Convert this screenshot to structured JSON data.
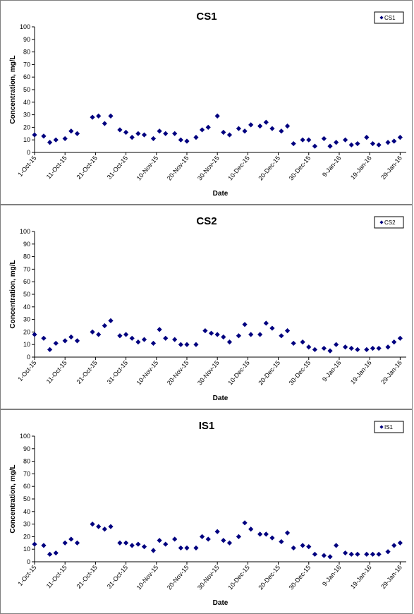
{
  "chart_data": [
    {
      "type": "scatter",
      "title": "CS1",
      "xlabel": "Date",
      "ylabel": "Concentration, mg/L",
      "ylim": [
        0,
        100
      ],
      "yticks": [
        0,
        10,
        20,
        30,
        40,
        50,
        60,
        70,
        80,
        90,
        100
      ],
      "xlim": [
        "2015-10-01",
        "2016-01-31"
      ],
      "xtick_labels": [
        "1-Oct-15",
        "11-Oct-15",
        "21-Oct-15",
        "31-Oct-15",
        "10-Nov-15",
        "20-Nov-15",
        "30-Nov-15",
        "10-Dec-15",
        "20-Dec-15",
        "30-Dec-15",
        "9-Jan-16",
        "19-Jan-16",
        "29-Jan-16"
      ],
      "grid": false,
      "legend_position": "top-right",
      "marker_color": "#00007f",
      "series": [
        {
          "name": "CS1",
          "x": [
            "2015-10-01",
            "2015-10-04",
            "2015-10-06",
            "2015-10-08",
            "2015-10-11",
            "2015-10-13",
            "2015-10-15",
            "2015-10-20",
            "2015-10-22",
            "2015-10-24",
            "2015-10-26",
            "2015-10-29",
            "2015-10-31",
            "2015-11-02",
            "2015-11-04",
            "2015-11-06",
            "2015-11-09",
            "2015-11-11",
            "2015-11-13",
            "2015-11-16",
            "2015-11-18",
            "2015-11-20",
            "2015-11-23",
            "2015-11-25",
            "2015-11-27",
            "2015-11-30",
            "2015-12-02",
            "2015-12-04",
            "2015-12-07",
            "2015-12-09",
            "2015-12-11",
            "2015-12-14",
            "2015-12-16",
            "2015-12-18",
            "2015-12-21",
            "2015-12-23",
            "2015-12-25",
            "2015-12-28",
            "2015-12-30",
            "2016-01-01",
            "2016-01-04",
            "2016-01-06",
            "2016-01-08",
            "2016-01-11",
            "2016-01-13",
            "2016-01-15",
            "2016-01-18",
            "2016-01-20",
            "2016-01-22",
            "2016-01-25",
            "2016-01-27",
            "2016-01-29"
          ],
          "y": [
            14,
            13,
            8,
            10,
            11,
            17,
            15,
            28,
            29,
            23,
            29,
            18,
            16,
            12,
            15,
            14,
            11,
            17,
            15,
            15,
            10,
            9,
            12,
            18,
            20,
            29,
            16,
            14,
            19,
            17,
            22,
            21,
            24,
            19,
            17,
            21,
            7,
            10,
            10,
            5,
            11,
            5,
            8,
            10,
            6,
            7,
            12,
            7,
            6,
            8,
            9,
            12
          ]
        }
      ]
    },
    {
      "type": "scatter",
      "title": "CS2",
      "xlabel": "Date",
      "ylabel": "Concentration, mg/L",
      "ylim": [
        0,
        100
      ],
      "yticks": [
        0,
        10,
        20,
        30,
        40,
        50,
        60,
        70,
        80,
        90,
        100
      ],
      "xlim": [
        "2015-10-01",
        "2016-01-31"
      ],
      "xtick_labels": [
        "1-Oct-15",
        "11-Oct-15",
        "21-Oct-15",
        "31-Oct-15",
        "10-Nov-15",
        "20-Nov-15",
        "30-Nov-15",
        "10-Dec-15",
        "20-Dec-15",
        "30-Dec-15",
        "9-Jan-16",
        "19-Jan-16",
        "29-Jan-16"
      ],
      "grid": false,
      "legend_position": "top-right",
      "marker_color": "#00007f",
      "series": [
        {
          "name": "CS2",
          "x": [
            "2015-10-01",
            "2015-10-04",
            "2015-10-06",
            "2015-10-08",
            "2015-10-11",
            "2015-10-13",
            "2015-10-15",
            "2015-10-20",
            "2015-10-22",
            "2015-10-24",
            "2015-10-26",
            "2015-10-29",
            "2015-10-31",
            "2015-11-02",
            "2015-11-04",
            "2015-11-06",
            "2015-11-09",
            "2015-11-11",
            "2015-11-13",
            "2015-11-16",
            "2015-11-18",
            "2015-11-20",
            "2015-11-23",
            "2015-11-26",
            "2015-11-28",
            "2015-11-30",
            "2015-12-02",
            "2015-12-04",
            "2015-12-07",
            "2015-12-09",
            "2015-12-11",
            "2015-12-14",
            "2015-12-16",
            "2015-12-18",
            "2015-12-21",
            "2015-12-23",
            "2015-12-25",
            "2015-12-28",
            "2015-12-30",
            "2016-01-01",
            "2016-01-04",
            "2016-01-06",
            "2016-01-08",
            "2016-01-11",
            "2016-01-13",
            "2016-01-15",
            "2016-01-18",
            "2016-01-20",
            "2016-01-22",
            "2016-01-25",
            "2016-01-27",
            "2016-01-29"
          ],
          "y": [
            18,
            15,
            6,
            11,
            13,
            16,
            13,
            20,
            18,
            25,
            29,
            17,
            18,
            15,
            12,
            14,
            11,
            22,
            15,
            14,
            10,
            10,
            10,
            21,
            19,
            18,
            16,
            12,
            17,
            26,
            18,
            18,
            27,
            23,
            17,
            21,
            11,
            12,
            8,
            6,
            7,
            5,
            10,
            8,
            7,
            6,
            6,
            7,
            7,
            8,
            12,
            15
          ]
        }
      ]
    },
    {
      "type": "scatter",
      "title": "IS1",
      "xlabel": "Date",
      "ylabel": "Concentration, mg/L",
      "ylim": [
        0,
        100
      ],
      "yticks": [
        0,
        10,
        20,
        30,
        40,
        50,
        60,
        70,
        80,
        90,
        100
      ],
      "xlim": [
        "2015-10-01",
        "2016-01-31"
      ],
      "xtick_labels": [
        "1-Oct-15",
        "11-Oct-15",
        "21-Oct-15",
        "31-Oct-15",
        "10-Nov-15",
        "20-Nov-15",
        "30-Nov-15",
        "10-Dec-15",
        "20-Dec-15",
        "30-Dec-15",
        "9-Jan-16",
        "19-Jan-16",
        "29-Jan-16"
      ],
      "grid": false,
      "legend_position": "top-right",
      "marker_color": "#00007f",
      "series": [
        {
          "name": "IS1",
          "x": [
            "2015-10-01",
            "2015-10-04",
            "2015-10-06",
            "2015-10-08",
            "2015-10-11",
            "2015-10-13",
            "2015-10-15",
            "2015-10-20",
            "2015-10-22",
            "2015-10-24",
            "2015-10-26",
            "2015-10-29",
            "2015-10-31",
            "2015-11-02",
            "2015-11-04",
            "2015-11-06",
            "2015-11-09",
            "2015-11-11",
            "2015-11-13",
            "2015-11-16",
            "2015-11-18",
            "2015-11-20",
            "2015-11-23",
            "2015-11-25",
            "2015-11-27",
            "2015-11-30",
            "2015-12-02",
            "2015-12-04",
            "2015-12-07",
            "2015-12-09",
            "2015-12-11",
            "2015-12-14",
            "2015-12-16",
            "2015-12-18",
            "2015-12-21",
            "2015-12-23",
            "2015-12-25",
            "2015-12-28",
            "2015-12-30",
            "2016-01-01",
            "2016-01-04",
            "2016-01-06",
            "2016-01-08",
            "2016-01-11",
            "2016-01-13",
            "2016-01-15",
            "2016-01-18",
            "2016-01-20",
            "2016-01-22",
            "2016-01-25",
            "2016-01-27",
            "2016-01-29"
          ],
          "y": [
            14,
            13,
            6,
            7,
            15,
            18,
            15,
            30,
            28,
            26,
            28,
            15,
            15,
            13,
            14,
            12,
            9,
            17,
            14,
            18,
            11,
            11,
            11,
            20,
            18,
            24,
            17,
            15,
            20,
            31,
            26,
            22,
            22,
            19,
            16,
            23,
            11,
            13,
            12,
            6,
            5,
            4,
            13,
            7,
            6,
            6,
            6,
            6,
            6,
            8,
            13,
            15
          ]
        }
      ]
    }
  ]
}
